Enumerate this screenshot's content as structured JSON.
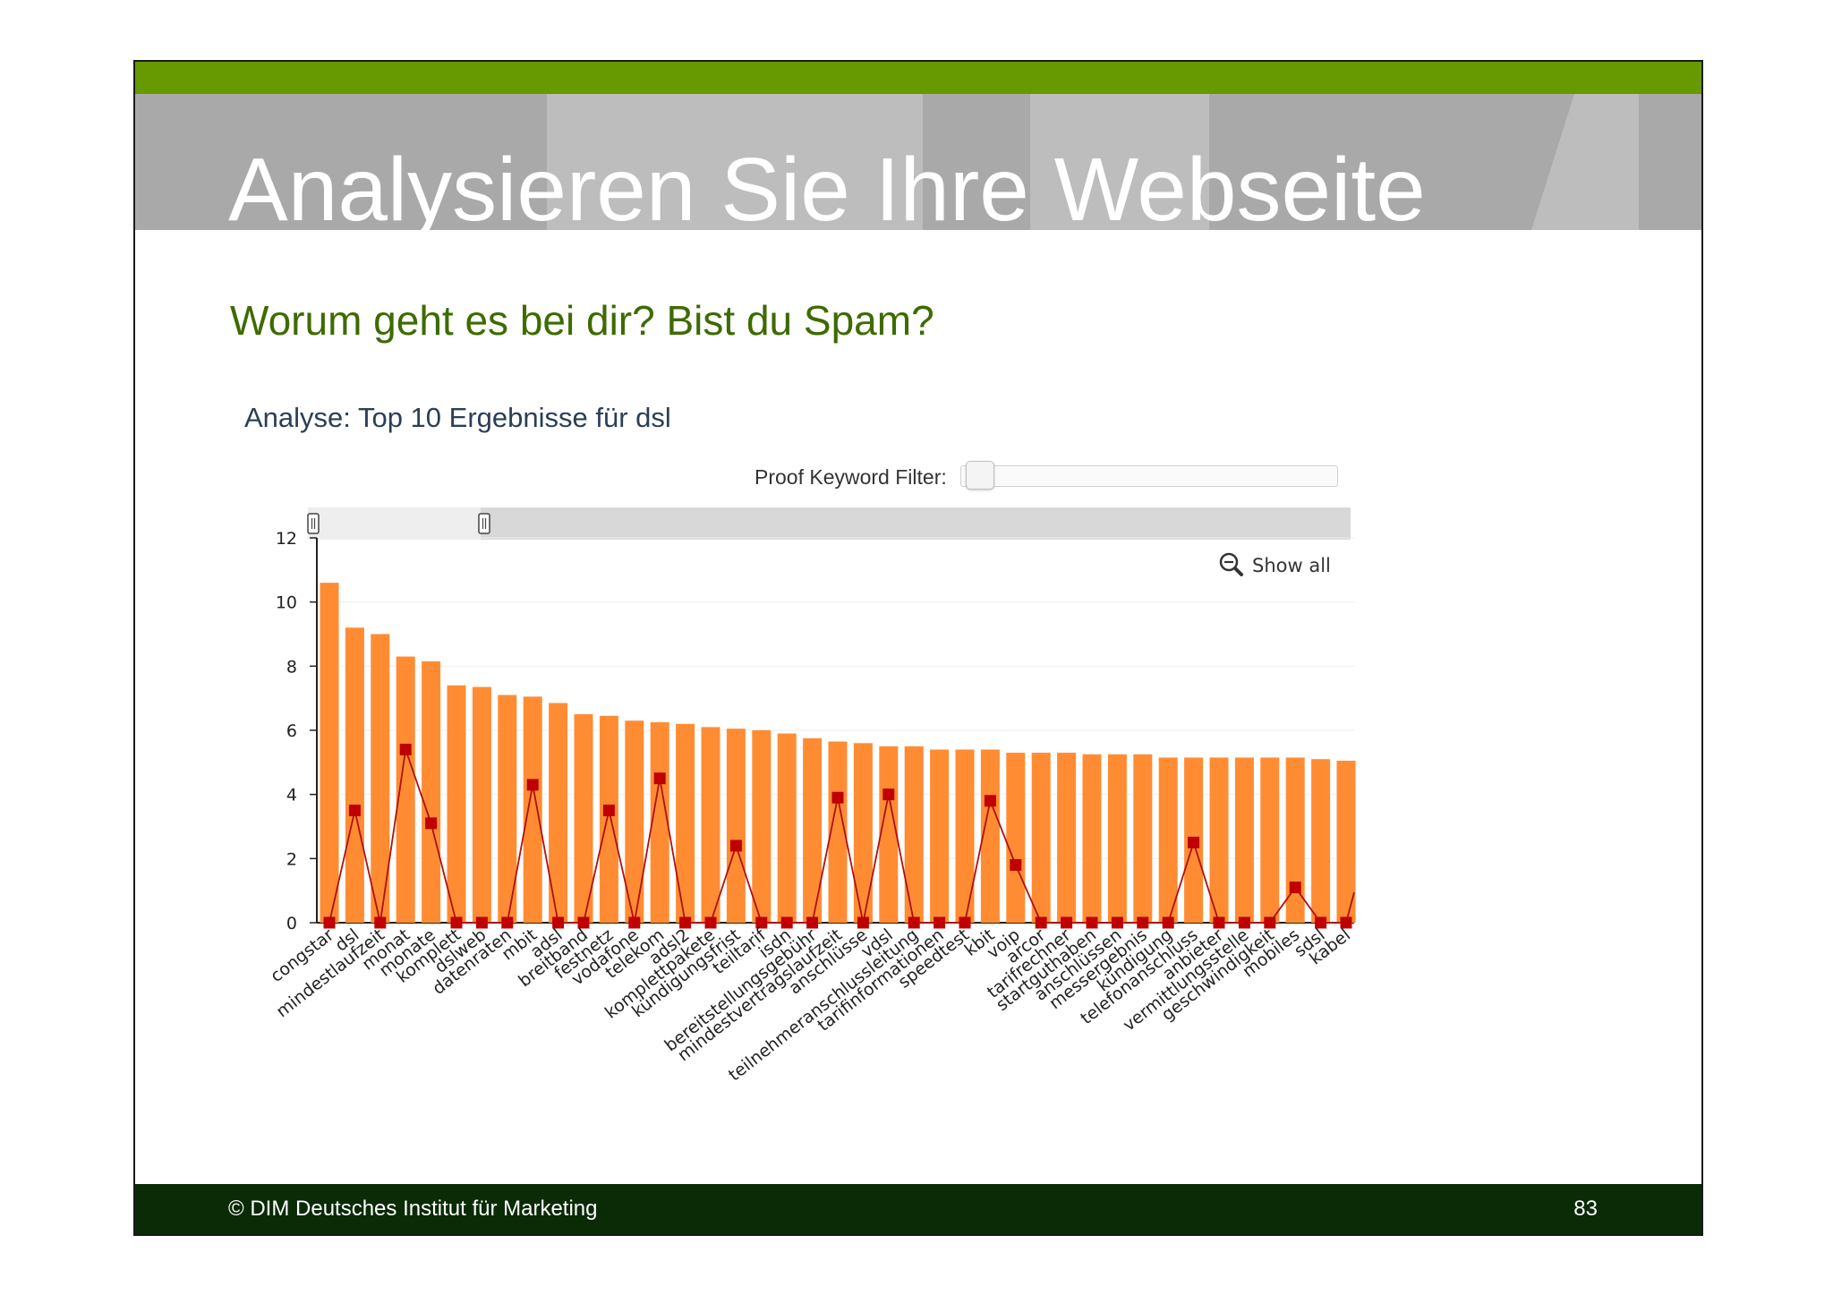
{
  "slide": {
    "title": "Analysieren Sie Ihre Webseite",
    "subtitle": "Worum geht es bei dir? Bist du Spam?",
    "analysis_heading": "Analyse: Top 10 Ergebnisse für dsl",
    "filter_label": "Proof Keyword Filter:",
    "show_all_label": "Show all",
    "footer_left": "© DIM Deutsches Institut für Marketing",
    "page_number": "83"
  },
  "colors": {
    "topbar": "#669a00",
    "titlebar": "#a9a9a9",
    "subtitle": "#3d6b00",
    "footer": "#0b2b07",
    "bar": "#ff8c33",
    "line": "#c00000"
  },
  "icons": [
    "zoom-out-icon",
    "slider-handle-icon"
  ],
  "chart_data": {
    "type": "bar",
    "title": "",
    "xlabel": "",
    "ylabel": "",
    "ylim": [
      0,
      12
    ],
    "yticks": [
      0,
      2,
      4,
      6,
      8,
      10,
      12
    ],
    "grid": true,
    "categories": [
      "congstar",
      "dsl",
      "mindestlaufzeit",
      "monat",
      "monate",
      "komplett",
      "dslweb",
      "datenraten",
      "mbit",
      "adsl",
      "breitband",
      "festnetz",
      "vodafone",
      "telekom",
      "adsl2",
      "komplettpakete",
      "kündigungsfrist",
      "teiltarif",
      "isdn",
      "bereitstellungsgebühr",
      "mindestvertragslaufzeit",
      "anschlüsse",
      "vdsl",
      "teilnehmeranschlussleitung",
      "tarifinformationen",
      "speedtest",
      "kbit",
      "voip",
      "arcor",
      "tarifrechner",
      "startguthaben",
      "anschlüssen",
      "messergebnis",
      "kündigung",
      "telefonanschluss",
      "anbieter",
      "vermittlungsstelle",
      "geschwindigkeit",
      "mobiles",
      "sdsl",
      "kabel"
    ],
    "series": [
      {
        "values": [
          10.6,
          9.2,
          9.0,
          8.3,
          8.15,
          7.4,
          7.35,
          7.1,
          7.05,
          6.85,
          6.5,
          6.45,
          6.3,
          6.25,
          6.2,
          6.1,
          6.05,
          6.0,
          5.9,
          5.75,
          5.65,
          5.6,
          5.5,
          5.5,
          5.4,
          5.4,
          5.4,
          5.3,
          5.3,
          5.3,
          5.25,
          5.25,
          5.25,
          5.15,
          5.15,
          5.15,
          5.15,
          5.15,
          5.15,
          5.1,
          5.05
        ]
      },
      {
        "values": [
          0,
          3.5,
          0,
          5.4,
          3.1,
          0,
          0,
          0,
          4.3,
          0,
          0,
          3.5,
          0,
          4.5,
          0,
          0,
          2.4,
          0,
          0,
          0,
          3.9,
          0,
          4.0,
          0,
          0,
          0,
          3.8,
          1.8,
          0,
          0,
          0,
          0,
          0,
          0,
          2.5,
          0,
          0,
          0,
          1.1,
          0,
          0
        ]
      }
    ],
    "legend": "none"
  }
}
